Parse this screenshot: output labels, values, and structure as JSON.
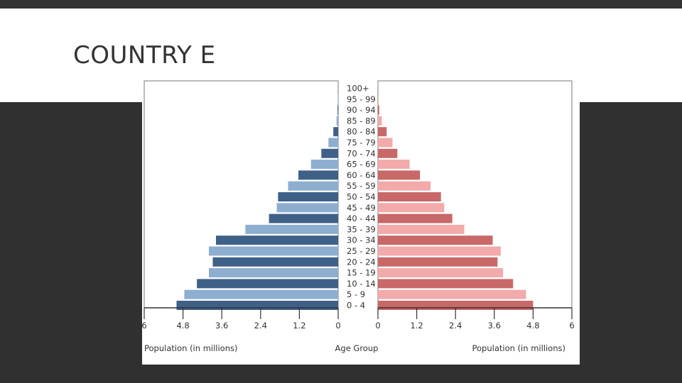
{
  "slide": {
    "title": "COUNTRY E"
  },
  "colors": {
    "male_dark": "#3f6188",
    "male_light": "#8eaed0",
    "female_dark": "#c96868",
    "female_light": "#f2aaaa"
  },
  "chart_data": {
    "type": "bar",
    "subtype": "population-pyramid",
    "categories": [
      "0 - 4",
      "5 - 9",
      "10 - 14",
      "15 - 19",
      "20 - 24",
      "25 - 29",
      "30 - 34",
      "35 - 39",
      "40 - 44",
      "45 - 49",
      "50 - 54",
      "55 - 59",
      "60 - 64",
      "65 - 69",
      "70 - 74",
      "75 - 79",
      "80 - 84",
      "85 - 89",
      "90 - 94",
      "95 - 99",
      "100+"
    ],
    "series": [
      {
        "side": "left",
        "values": [
          5.0,
          4.76,
          4.37,
          4.0,
          3.88,
          4.0,
          3.78,
          2.87,
          2.14,
          1.9,
          1.86,
          1.55,
          1.23,
          0.84,
          0.52,
          0.3,
          0.15,
          0.05,
          0.02,
          0.01,
          0.0
        ]
      },
      {
        "side": "right",
        "values": [
          4.8,
          4.58,
          4.18,
          3.87,
          3.7,
          3.8,
          3.55,
          2.67,
          2.3,
          2.05,
          1.95,
          1.63,
          1.3,
          0.98,
          0.6,
          0.45,
          0.27,
          0.12,
          0.04,
          0.02,
          0.01
        ]
      }
    ],
    "xlabel_left": "Population (in millions)",
    "xlabel_center": "Age Group",
    "xlabel_right": "Population (in millions)",
    "xlim": [
      0,
      6
    ],
    "left_ticks": [
      "6",
      "4.8",
      "3.6",
      "2.4",
      "1.2",
      "0"
    ],
    "right_ticks": [
      "0",
      "1.2",
      "2.4",
      "3.6",
      "4.8",
      "6"
    ],
    "grid": false,
    "legend": "none"
  }
}
